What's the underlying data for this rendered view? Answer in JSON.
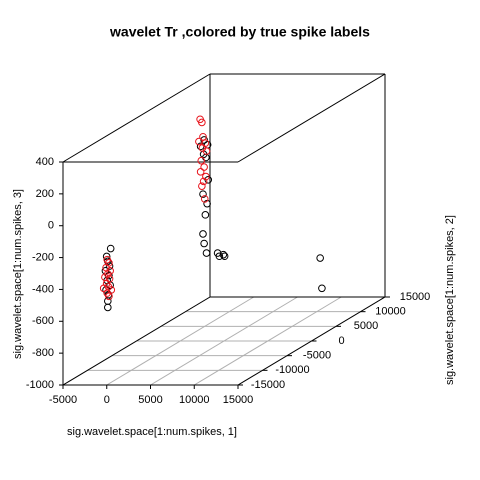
{
  "chart_data": {
    "type": "scatter3d",
    "title": "wavelet Tr ,colored by true spike labels",
    "x_label": "sig.wavelet.space[1:num.spikes, 1]",
    "y_label": "sig.wavelet.space[1:num.spikes, 2]",
    "z_label": "sig.wavelet.space[1:num.spikes, 3]",
    "xlim": [
      -5000,
      15000
    ],
    "xticks": [
      -5000,
      0,
      5000,
      10000,
      15000
    ],
    "ylim": [
      -15000,
      15000
    ],
    "yticks": [
      -15000,
      -10000,
      -5000,
      0,
      5000,
      10000,
      15000
    ],
    "zlim": [
      -1000,
      400
    ],
    "zticks": [
      -1000,
      -800,
      -600,
      -400,
      -200,
      0,
      200,
      400
    ],
    "grid": true,
    "series": [
      {
        "color": "#000000",
        "x": [
          -670,
          -1130,
          -1000,
          -800,
          -1270,
          -870,
          -1070,
          -730,
          -1200,
          -930,
          -1000,
          -1000,
          -70,
          -470,
          330,
          -130,
          130,
          400,
          -200,
          270,
          70,
          -200,
          -70,
          200,
          1470,
          1670,
          2130,
          2270,
          9270,
          9470
        ],
        "y": [
          -13000,
          -13000,
          -13000,
          -13000,
          -13000,
          -13000,
          -13000,
          -13000,
          -13000,
          -13000,
          -13000,
          -13000,
          5000,
          5000,
          5000,
          5000,
          5000,
          5000,
          5000,
          5000,
          5000,
          5000,
          5000,
          5000,
          5000,
          5000,
          5000,
          5000,
          12000,
          12000
        ],
        "z": [
          -180,
          -230,
          -260,
          -290,
          -320,
          -350,
          -380,
          -410,
          -440,
          -470,
          -510,
          -550,
          170,
          130,
          140,
          80,
          60,
          -80,
          -170,
          -230,
          -300,
          -420,
          -480,
          -540,
          -540,
          -560,
          -550,
          -560,
          -700,
          -890
        ]
      },
      {
        "color": "#e8141c",
        "x": [
          -1070,
          -870,
          -1200,
          -730,
          -1000,
          -1330,
          -800,
          -1130,
          -930,
          -1470,
          -600,
          -1070,
          -870,
          -530,
          -330,
          -200,
          -670,
          70,
          -270,
          200,
          -400,
          -70,
          -470,
          130,
          -130,
          -330,
          0
        ],
        "y": [
          -13000,
          -13000,
          -13000,
          -13000,
          -13000,
          -13000,
          -13000,
          -13000,
          -13000,
          -13000,
          -13000,
          -13000,
          -13000,
          5000,
          5000,
          5000,
          5000,
          5000,
          5000,
          5000,
          5000,
          5000,
          5000,
          5000,
          5000,
          5000,
          5000
        ],
        "z": [
          -250,
          -270,
          -300,
          -320,
          -340,
          -360,
          -370,
          -400,
          -420,
          -430,
          -440,
          -460,
          -480,
          300,
          280,
          190,
          160,
          150,
          120,
          100,
          40,
          0,
          -30,
          -60,
          -90,
          -120,
          -200
        ]
      }
    ]
  }
}
